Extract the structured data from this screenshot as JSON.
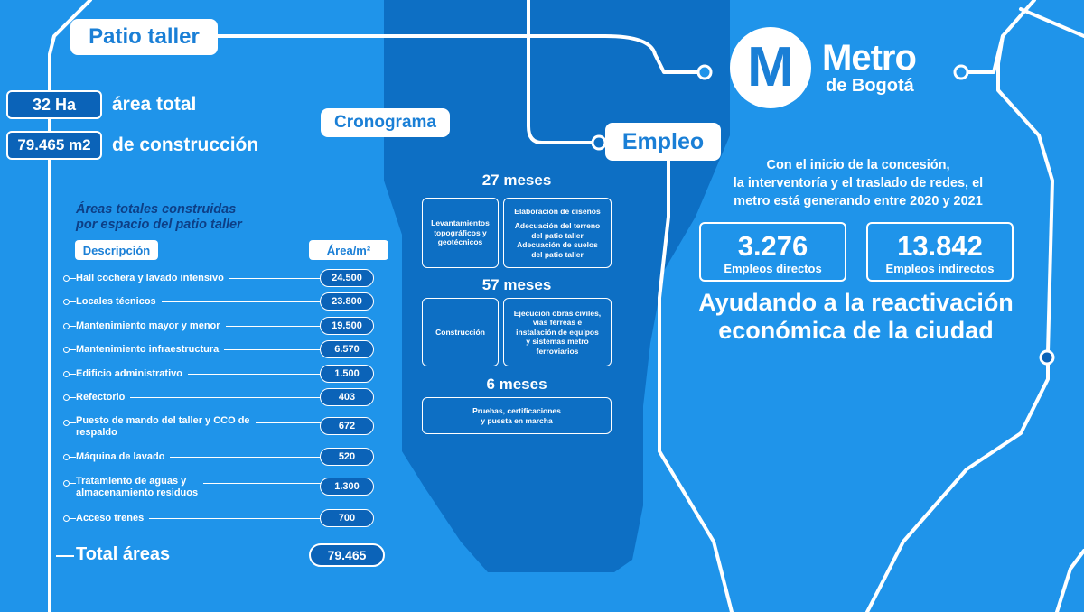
{
  "patio": {
    "title": "Patio taller",
    "stats": [
      {
        "value": "32 Ha",
        "label": "área total"
      },
      {
        "value": "79.465 m2",
        "label": "de construcción"
      }
    ],
    "subtitle_line1": "Áreas totales construidas",
    "subtitle_line2": "por espacio del patio taller",
    "col_desc": "Descripción",
    "col_area": "Área/m²",
    "rows": [
      {
        "line1": "Hall cochera y lavado intensivo",
        "line2": "",
        "value": "24.500"
      },
      {
        "line1": "Locales técnicos",
        "line2": "",
        "value": "23.800"
      },
      {
        "line1": "Mantenimiento mayor y menor",
        "line2": "",
        "value": "19.500"
      },
      {
        "line1": "Mantenimiento infraestructura",
        "line2": "",
        "value": "6.570"
      },
      {
        "line1": "Edificio administrativo",
        "line2": "",
        "value": "1.500"
      },
      {
        "line1": "Refectorio",
        "line2": "",
        "value": "403"
      },
      {
        "line1": "Puesto de mando del taller y CCO de",
        "line2": "respaldo",
        "value": "672"
      },
      {
        "line1": "Máquina de lavado",
        "line2": "",
        "value": "520"
      },
      {
        "line1": "Tratamiento de aguas y",
        "line2": "almacenamiento residuos",
        "value": "1.300"
      },
      {
        "line1": "Acceso trenes",
        "line2": "",
        "value": "700"
      }
    ],
    "total_label": "Total áreas",
    "total_value": "79.465"
  },
  "cronograma": {
    "title": "Cronograma",
    "phase1": {
      "duration": "27 meses",
      "box1": [
        "Levantamientos",
        "topográficos y",
        "geotécnicos"
      ],
      "box2a": [
        "Elaboración de diseños"
      ],
      "box2b": [
        "Adecuación del terreno",
        "del patio taller"
      ],
      "box2c": [
        "Adecuación de suelos",
        "del patio taller"
      ]
    },
    "phase2": {
      "duration": "57 meses",
      "box1": [
        "Construcción"
      ],
      "box2": [
        "Ejecución obras civiles,",
        "vías férreas e",
        "instalación de equipos",
        "y sistemas metro",
        "ferroviarios"
      ]
    },
    "phase3": {
      "duration": "6 meses",
      "box1": [
        "Pruebas, certificaciones",
        "y puesta en marcha"
      ]
    }
  },
  "brand": {
    "letter": "M",
    "name_line1": "Metro",
    "name_line2": "de Bogotá"
  },
  "empleo": {
    "title": "Empleo",
    "intro_line1": "Con el inicio de la concesión,",
    "intro_line2": "la interventoría y el traslado de redes, el",
    "intro_line3": "metro está generando entre 2020 y 2021",
    "direct_value": "3.276",
    "direct_label": "Empleos directos",
    "indirect_value": "13.842",
    "indirect_label": "Empleos indirectos",
    "slogan_line1": "Ayudando a la reactivación",
    "slogan_line2": "económica de la ciudad"
  },
  "colors": {
    "background": "#1f94ea",
    "dark_band": "#0d6fc4",
    "badge": "#0b63b8",
    "title_text": "#1a7fd6",
    "subtitle_text": "#0d3f86"
  }
}
